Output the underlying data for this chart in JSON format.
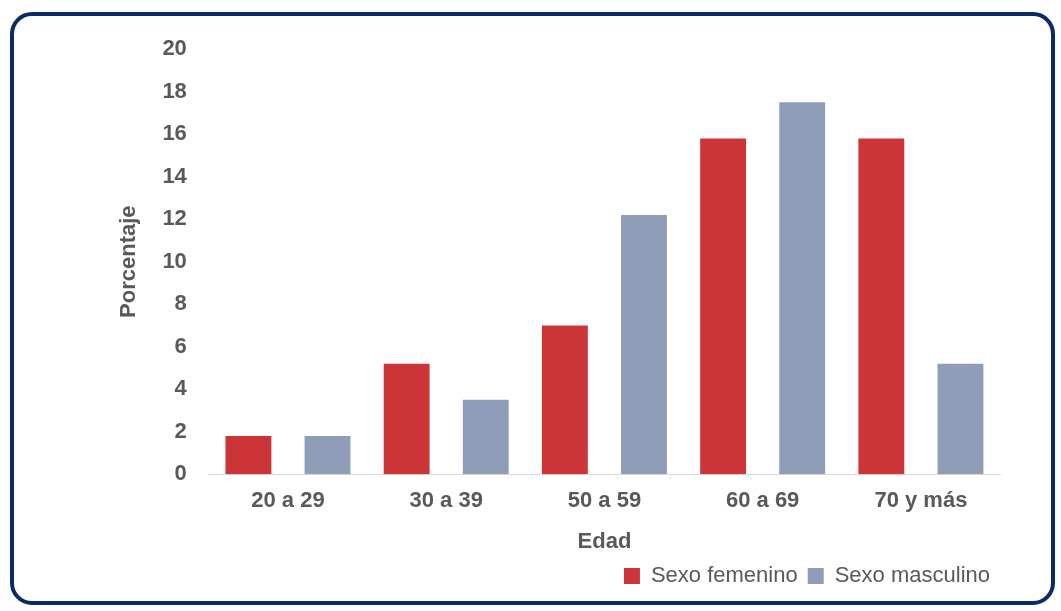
{
  "chart_data": {
    "type": "bar",
    "xlabel": "Edad",
    "ylabel": "Porcentaje",
    "categories": [
      "20 a 29",
      "30 a 39",
      "50 a 59",
      "60 a 69",
      "70 y más"
    ],
    "series": [
      {
        "name": "Sexo femenino",
        "color": "#cc3538",
        "values": [
          1.8,
          5.2,
          7.0,
          15.8,
          15.8
        ]
      },
      {
        "name": "Sexo masculino",
        "color": "#8f9db8",
        "values": [
          1.8,
          3.5,
          12.2,
          17.5,
          5.2
        ]
      }
    ],
    "ylim": [
      0,
      20
    ],
    "yticks": [
      0,
      2,
      4,
      6,
      8,
      10,
      12,
      14,
      16,
      18,
      20
    ],
    "grid": false,
    "legend": "bottom right"
  }
}
